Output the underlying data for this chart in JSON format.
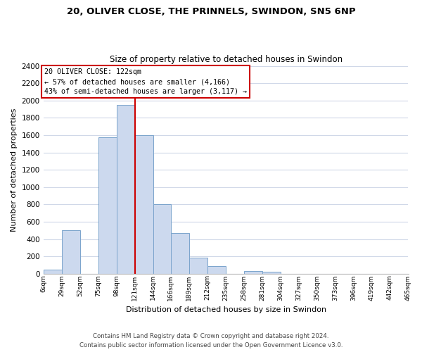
{
  "title1": "20, OLIVER CLOSE, THE PRINNELS, SWINDON, SN5 6NP",
  "title2": "Size of property relative to detached houses in Swindon",
  "xlabel": "Distribution of detached houses by size in Swindon",
  "ylabel": "Number of detached properties",
  "bar_color": "#ccd9ee",
  "bar_edge_color": "#7ba4cc",
  "bin_edges": [
    6,
    29,
    52,
    75,
    98,
    121,
    144,
    166,
    189,
    212,
    235,
    258,
    281,
    304,
    327,
    350,
    373,
    396,
    419,
    442,
    465
  ],
  "bar_heights": [
    50,
    500,
    0,
    1575,
    1950,
    1600,
    800,
    470,
    190,
    85,
    0,
    30,
    20,
    0,
    0,
    0,
    0,
    0,
    0,
    0
  ],
  "tick_labels": [
    "6sqm",
    "29sqm",
    "52sqm",
    "75sqm",
    "98sqm",
    "121sqm",
    "144sqm",
    "166sqm",
    "189sqm",
    "212sqm",
    "235sqm",
    "258sqm",
    "281sqm",
    "304sqm",
    "327sqm",
    "350sqm",
    "373sqm",
    "396sqm",
    "419sqm",
    "442sqm",
    "465sqm"
  ],
  "ylim": [
    0,
    2400
  ],
  "yticks": [
    0,
    200,
    400,
    600,
    800,
    1000,
    1200,
    1400,
    1600,
    1800,
    2000,
    2200,
    2400
  ],
  "property_line_x": 121,
  "annotation_title": "20 OLIVER CLOSE: 122sqm",
  "annotation_line1": "← 57% of detached houses are smaller (4,166)",
  "annotation_line2": "43% of semi-detached houses are larger (3,117) →",
  "annotation_box_color": "#ffffff",
  "annotation_border_color": "#cc0000",
  "property_line_color": "#cc0000",
  "footer1": "Contains HM Land Registry data © Crown copyright and database right 2024.",
  "footer2": "Contains public sector information licensed under the Open Government Licence v3.0.",
  "background_color": "#ffffff",
  "grid_color": "#d0d8e8"
}
